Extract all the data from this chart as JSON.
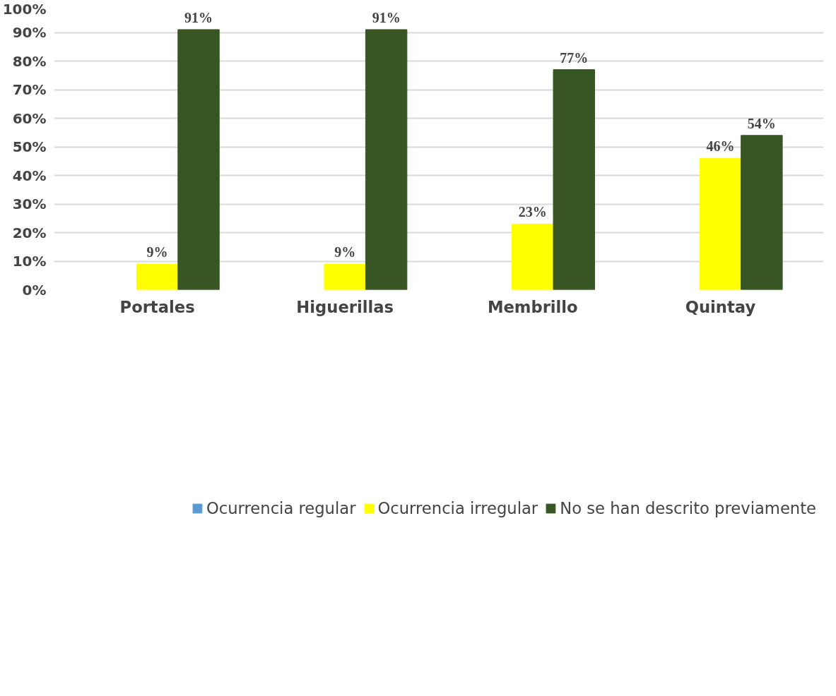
{
  "chart_data": {
    "type": "bar",
    "categories": [
      "Portales",
      "Higuerillas",
      "Membrillo",
      "Quintay"
    ],
    "series": [
      {
        "name": "Ocurrencia regular",
        "color": "#5b9bd5",
        "values": [
          null,
          null,
          null,
          null
        ]
      },
      {
        "name": "Ocurrencia irregular",
        "color": "#ffff00",
        "values": [
          9,
          9,
          23,
          46
        ],
        "value_labels": [
          "9%",
          "9%",
          "23%",
          "46%"
        ]
      },
      {
        "name": "No se han descrito previamente",
        "color": "#375623",
        "values": [
          91,
          91,
          77,
          54
        ],
        "value_labels": [
          "91%",
          "91%",
          "77%",
          "54%"
        ]
      }
    ],
    "ylim": [
      0,
      100
    ],
    "yticks": [
      {
        "value": 0,
        "label": "0%"
      },
      {
        "value": 10,
        "label": "10%"
      },
      {
        "value": 20,
        "label": "20%"
      },
      {
        "value": 30,
        "label": "30%"
      },
      {
        "value": 40,
        "label": "40%"
      },
      {
        "value": 50,
        "label": "50%"
      },
      {
        "value": 60,
        "label": "60%"
      },
      {
        "value": 70,
        "label": "70%"
      },
      {
        "value": 80,
        "label": "80%"
      },
      {
        "value": 90,
        "label": "90%"
      },
      {
        "value": 100,
        "label": "100%"
      }
    ],
    "grid": "y",
    "legend": "bottom"
  }
}
